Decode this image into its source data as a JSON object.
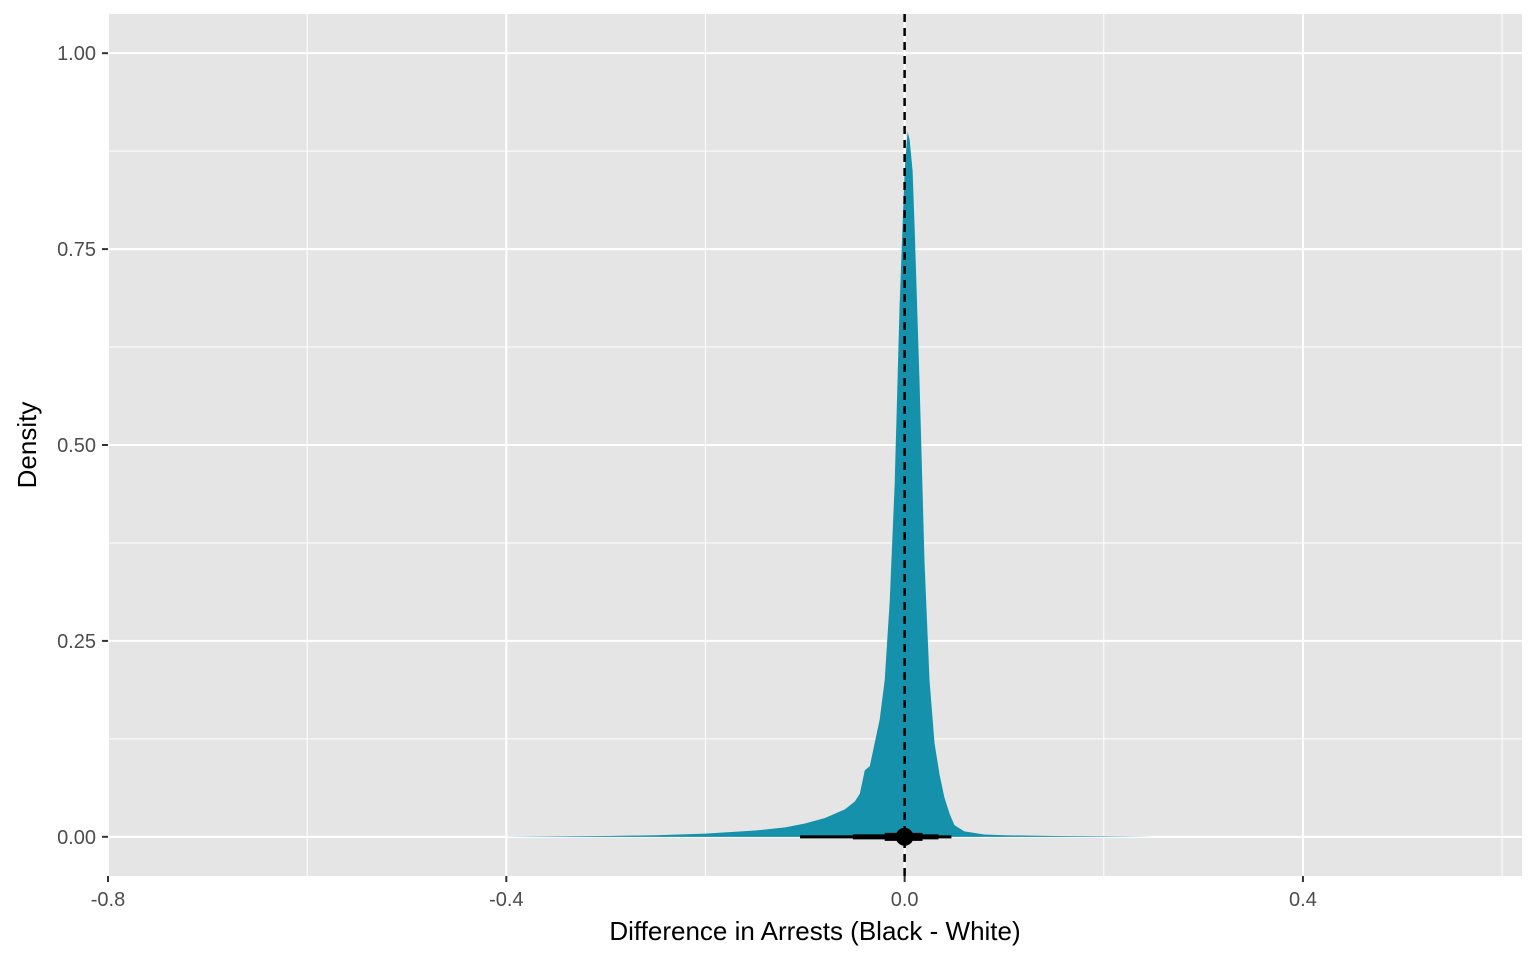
{
  "chart_data": {
    "type": "area",
    "xlabel": "Difference in Arrests (Black - White)",
    "ylabel": "Density",
    "xlim": [
      -0.8,
      0.62
    ],
    "ylim": [
      -0.05,
      1.05
    ],
    "x_ticks": [
      -0.8,
      -0.4,
      0.0,
      0.4
    ],
    "x_tick_labels": [
      "-0.8",
      "-0.4",
      "0.0",
      "0.4"
    ],
    "y_ticks": [
      0.0,
      0.25,
      0.5,
      0.75,
      1.0
    ],
    "y_tick_labels": [
      "0.00",
      "0.25",
      "0.50",
      "0.75",
      "1.00"
    ],
    "grid": true,
    "legend": "none",
    "colors": {
      "panel_background": "#e5e5e5",
      "grid": "#ffffff",
      "density_fill": "#1591ab",
      "interval": "#000000"
    },
    "density": {
      "x": [
        -0.4,
        -0.3,
        -0.25,
        -0.2,
        -0.15,
        -0.12,
        -0.1,
        -0.08,
        -0.06,
        -0.05,
        -0.045,
        -0.04,
        -0.035,
        -0.03,
        -0.025,
        -0.02,
        -0.015,
        -0.01,
        -0.005,
        0.0,
        0.003,
        0.005,
        0.008,
        0.01,
        0.015,
        0.02,
        0.025,
        0.03,
        0.035,
        0.04,
        0.045,
        0.05,
        0.06,
        0.08,
        0.1,
        0.15,
        0.2,
        0.25
      ],
      "y": [
        0.0,
        0.001,
        0.002,
        0.004,
        0.008,
        0.012,
        0.017,
        0.024,
        0.035,
        0.045,
        0.055,
        0.085,
        0.09,
        0.12,
        0.15,
        0.2,
        0.3,
        0.45,
        0.68,
        0.85,
        0.9,
        0.89,
        0.85,
        0.78,
        0.58,
        0.35,
        0.2,
        0.12,
        0.08,
        0.05,
        0.03,
        0.015,
        0.007,
        0.003,
        0.002,
        0.001,
        0.0005,
        0.0
      ]
    },
    "reference_line": {
      "x": 0.0,
      "style": "dashed"
    },
    "point_interval": {
      "point": 0.0,
      "intervals": [
        [
          -0.105,
          0.047
        ],
        [
          -0.052,
          0.034
        ],
        [
          -0.02,
          0.018
        ]
      ]
    }
  }
}
